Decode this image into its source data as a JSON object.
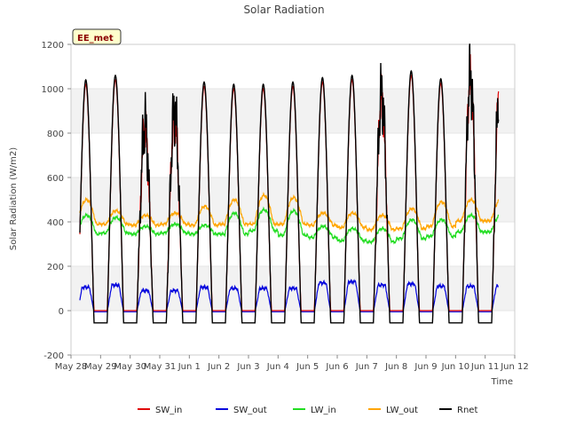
{
  "chart_data": {
    "type": "line",
    "title": "Solar Radiation",
    "xlabel": "Time",
    "ylabel": "Solar Radiation (W/m2)",
    "ylim": [
      -200,
      1200
    ],
    "yticks": [
      -200,
      0,
      200,
      400,
      600,
      800,
      1000,
      1200
    ],
    "xlim": [
      0,
      15
    ],
    "xticks": [
      {
        "pos": 0,
        "label": "May 28"
      },
      {
        "pos": 1,
        "label": "May 29"
      },
      {
        "pos": 2,
        "label": "May 30"
      },
      {
        "pos": 3,
        "label": "May 31"
      },
      {
        "pos": 4,
        "label": "Jun 1"
      },
      {
        "pos": 5,
        "label": "Jun 2"
      },
      {
        "pos": 6,
        "label": "Jun 3"
      },
      {
        "pos": 7,
        "label": "Jun 4"
      },
      {
        "pos": 8,
        "label": "Jun 5"
      },
      {
        "pos": 9,
        "label": "Jun 6"
      },
      {
        "pos": 10,
        "label": "Jun 7"
      },
      {
        "pos": 11,
        "label": "Jun 8"
      },
      {
        "pos": 12,
        "label": "Jun 9"
      },
      {
        "pos": 13,
        "label": "Jun 10"
      },
      {
        "pos": 14,
        "label": "Jun 11"
      },
      {
        "pos": 15,
        "label": "Jun 12"
      }
    ],
    "data_range_days": [
      0.3,
      14.45
    ],
    "background_bands": true,
    "legend_position": "bottom-center",
    "badge": "EE_met",
    "day_peaks": [
      1020,
      1040,
      820,
      880,
      1010,
      1000,
      1000,
      1010,
      1030,
      1040,
      960,
      1060,
      1025,
      1040
    ],
    "series": [
      {
        "name": "SW_in",
        "color": "#e00000",
        "peak_ref": "day_peaks",
        "night": 0
      },
      {
        "name": "SW_out",
        "color": "#0000dd",
        "day_values": [
          105,
          115,
          90,
          90,
          105,
          100,
          100,
          100,
          125,
          130,
          115,
          120,
          110,
          110
        ],
        "night": -5
      },
      {
        "name": "LW_in",
        "color": "#22dd22",
        "day_values": [
          430,
          420,
          380,
          390,
          385,
          440,
          455,
          450,
          380,
          370,
          370,
          410,
          410,
          430
        ],
        "night_values": [
          345,
          350,
          345,
          350,
          345,
          345,
          360,
          340,
          330,
          315,
          310,
          325,
          335,
          355
        ]
      },
      {
        "name": "LW_out",
        "color": "#ffa500",
        "day_values": [
          500,
          450,
          430,
          440,
          470,
          500,
          520,
          510,
          440,
          440,
          430,
          460,
          490,
          500
        ],
        "night_values": [
          390,
          390,
          385,
          390,
          385,
          390,
          390,
          390,
          385,
          375,
          365,
          370,
          380,
          405
        ]
      },
      {
        "name": "Rnet",
        "color": "#000000",
        "peak_ref": "day_peaks",
        "night": -55
      }
    ]
  }
}
